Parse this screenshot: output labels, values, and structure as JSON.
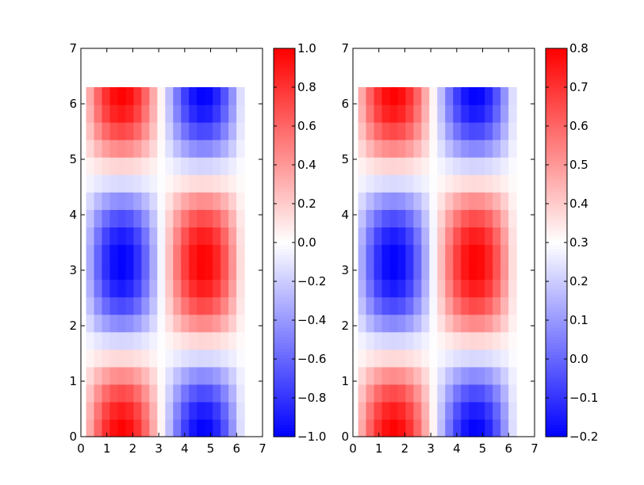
{
  "chart_data": [
    {
      "type": "heatmap",
      "title": "",
      "xlabel": "",
      "ylabel": "",
      "xlim": [
        0,
        7
      ],
      "ylim": [
        0,
        7
      ],
      "xticks": [
        "0",
        "1",
        "2",
        "3",
        "4",
        "5",
        "6",
        "7"
      ],
      "yticks": [
        "0",
        "1",
        "2",
        "3",
        "4",
        "5",
        "6",
        "7"
      ],
      "grid": false,
      "colormap": "bwr",
      "data_extent": {
        "x": [
          0.2,
          6.3
        ],
        "y": [
          0.0,
          6.3
        ]
      },
      "function": "sin(x) * cos(y)",
      "colorbar": {
        "vmin": -1.0,
        "vmax": 1.0,
        "ticks": [
          "1.0",
          "0.8",
          "0.6",
          "0.4",
          "0.2",
          "0.0",
          "−0.2",
          "−0.4",
          "−0.6",
          "−0.8",
          "−1.0"
        ]
      }
    },
    {
      "type": "heatmap",
      "title": "",
      "xlabel": "",
      "ylabel": "",
      "xlim": [
        0,
        7
      ],
      "ylim": [
        0,
        7
      ],
      "xticks": [
        "0",
        "1",
        "2",
        "3",
        "4",
        "5",
        "6",
        "7"
      ],
      "yticks": [
        "0",
        "1",
        "2",
        "3",
        "4",
        "5",
        "6",
        "7"
      ],
      "grid": false,
      "colormap": "bwr",
      "data_extent": {
        "x": [
          0.2,
          6.3
        ],
        "y": [
          0.0,
          6.3
        ]
      },
      "function": "sin(x) * cos(y) * 0.5 + 0.3",
      "colorbar": {
        "vmin": -0.2,
        "vmax": 0.8,
        "ticks": [
          "0.8",
          "0.7",
          "0.6",
          "0.5",
          "0.4",
          "0.3",
          "0.2",
          "0.1",
          "0.0",
          "−0.1",
          "−0.2"
        ]
      }
    }
  ],
  "colors": {
    "low": "#0000ff",
    "mid": "#ffffff",
    "high": "#ff0000",
    "frame": "#000000",
    "background": "#ffffff"
  }
}
